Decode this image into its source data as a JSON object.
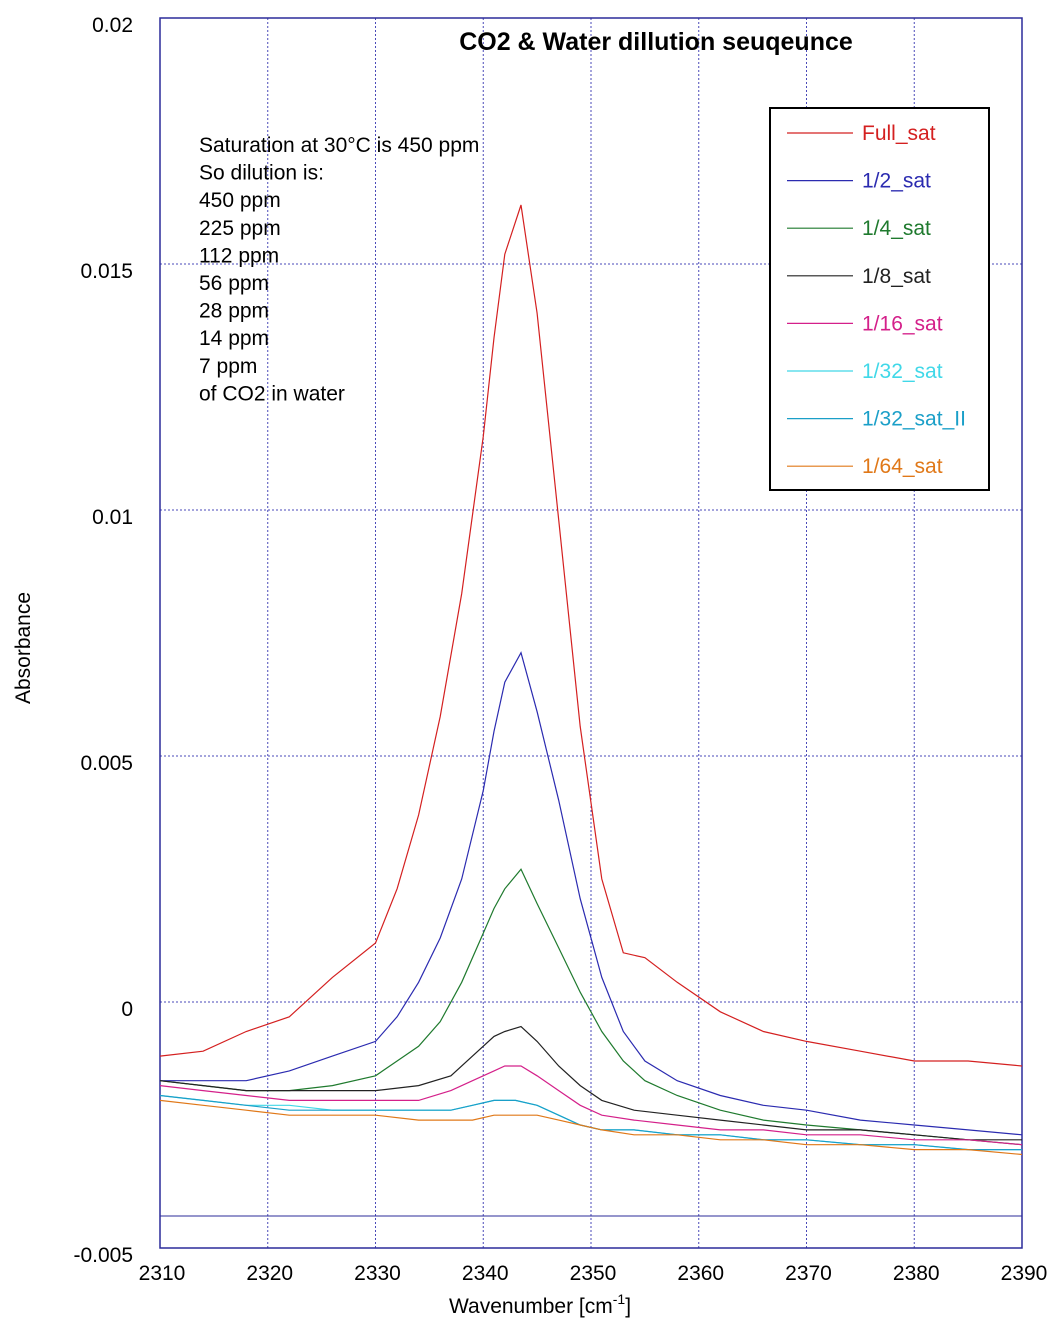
{
  "chart_data": {
    "type": "line",
    "title": "CO2 & Water dillution seuqeunce",
    "xlabel": "Wavenumber [cm",
    "xlabel_sup": "-1",
    "xlabel_end": "]",
    "ylabel": "Absorbance",
    "xlim": [
      2310,
      2390
    ],
    "ylim": [
      -0.005,
      0.02
    ],
    "x_ticks": [
      2310,
      2320,
      2330,
      2340,
      2350,
      2360,
      2370,
      2380,
      2390
    ],
    "y_ticks": [
      -0.005,
      0,
      0.005,
      0.01,
      0.015,
      0.02
    ],
    "x_tick_labels": [
      "2310",
      "2320",
      "2330",
      "2340",
      "2350",
      "2360",
      "2370",
      "2380",
      "2390"
    ],
    "y_tick_labels": [
      "-0.005",
      "0",
      "0.005",
      "0.01",
      "0.015",
      "0.02"
    ],
    "grid": true,
    "legend_position": "top-right",
    "annotation_lines": [
      "Saturation at 30°C is 450 ppm",
      "So dilution is:",
      "450 ppm",
      "225 ppm",
      "112 ppm",
      "56 ppm",
      "28 ppm",
      "14 ppm",
      "7 ppm",
      "of CO2 in water"
    ],
    "series": [
      {
        "name": "Full_sat",
        "color": "#d42020",
        "x": [
          2310,
          2314,
          2318,
          2322,
          2326,
          2330,
          2332,
          2334,
          2336,
          2338,
          2340,
          2341,
          2342,
          2343.5,
          2345,
          2347,
          2349,
          2351,
          2353,
          2355,
          2358,
          2362,
          2366,
          2370,
          2375,
          2380,
          2385,
          2390
        ],
        "y": [
          -0.0011,
          -0.001,
          -0.0006,
          -0.0003,
          0.0005,
          0.0012,
          0.0023,
          0.0038,
          0.0058,
          0.0083,
          0.0115,
          0.0135,
          0.0152,
          0.0162,
          0.014,
          0.0098,
          0.0056,
          0.0025,
          0.001,
          0.0009,
          0.0004,
          -0.0002,
          -0.0006,
          -0.0008,
          -0.001,
          -0.0012,
          -0.0012,
          -0.0013
        ]
      },
      {
        "name": "1/2_sat",
        "color": "#2b2bb0",
        "x": [
          2310,
          2314,
          2318,
          2322,
          2326,
          2330,
          2332,
          2334,
          2336,
          2338,
          2340,
          2341,
          2342,
          2343.5,
          2345,
          2347,
          2349,
          2351,
          2353,
          2355,
          2358,
          2362,
          2366,
          2370,
          2375,
          2380,
          2385,
          2390
        ],
        "y": [
          -0.0016,
          -0.0016,
          -0.0016,
          -0.0014,
          -0.0011,
          -0.0008,
          -0.0003,
          0.0004,
          0.0013,
          0.0025,
          0.0043,
          0.0055,
          0.0065,
          0.0071,
          0.0059,
          0.0041,
          0.0021,
          0.0005,
          -0.0006,
          -0.0012,
          -0.0016,
          -0.0019,
          -0.0021,
          -0.0022,
          -0.0024,
          -0.0025,
          -0.0026,
          -0.0027
        ]
      },
      {
        "name": "1/4_sat",
        "color": "#1f7a2e",
        "x": [
          2310,
          2314,
          2318,
          2322,
          2326,
          2330,
          2332,
          2334,
          2336,
          2338,
          2340,
          2341,
          2342,
          2343.5,
          2345,
          2347,
          2349,
          2351,
          2353,
          2355,
          2358,
          2362,
          2366,
          2370,
          2375,
          2380,
          2385,
          2390
        ],
        "y": [
          -0.0016,
          -0.0017,
          -0.0018,
          -0.0018,
          -0.0017,
          -0.0015,
          -0.0012,
          -0.0009,
          -0.0004,
          0.0004,
          0.0014,
          0.0019,
          0.0023,
          0.0027,
          0.002,
          0.0011,
          0.0002,
          -0.0006,
          -0.0012,
          -0.0016,
          -0.0019,
          -0.0022,
          -0.0024,
          -0.0025,
          -0.0026,
          -0.0027,
          -0.0028,
          -0.0029
        ]
      },
      {
        "name": "1/8_sat",
        "color": "#222222",
        "x": [
          2310,
          2314,
          2318,
          2322,
          2326,
          2330,
          2334,
          2337,
          2339,
          2341,
          2342,
          2343.5,
          2345,
          2347,
          2349,
          2351,
          2354,
          2358,
          2362,
          2366,
          2370,
          2375,
          2380,
          2385,
          2390
        ],
        "y": [
          -0.0016,
          -0.0017,
          -0.0018,
          -0.0018,
          -0.0018,
          -0.0018,
          -0.0017,
          -0.0015,
          -0.0011,
          -0.0007,
          -0.0006,
          -0.0005,
          -0.0008,
          -0.0013,
          -0.0017,
          -0.002,
          -0.0022,
          -0.0023,
          -0.0024,
          -0.0025,
          -0.0026,
          -0.0026,
          -0.0027,
          -0.0028,
          -0.0028
        ]
      },
      {
        "name": "1/16_sat",
        "color": "#d4208a",
        "x": [
          2310,
          2314,
          2318,
          2322,
          2326,
          2330,
          2334,
          2337,
          2339,
          2341,
          2342,
          2343.5,
          2345,
          2347,
          2349,
          2351,
          2354,
          2358,
          2362,
          2366,
          2370,
          2375,
          2380,
          2385,
          2390
        ],
        "y": [
          -0.0017,
          -0.0018,
          -0.0019,
          -0.002,
          -0.002,
          -0.002,
          -0.002,
          -0.0018,
          -0.0016,
          -0.0014,
          -0.0013,
          -0.0013,
          -0.0015,
          -0.0018,
          -0.0021,
          -0.0023,
          -0.0024,
          -0.0025,
          -0.0026,
          -0.0026,
          -0.0027,
          -0.0027,
          -0.0028,
          -0.0028,
          -0.0029
        ]
      },
      {
        "name": "1/32_sat",
        "color": "#40d8e8",
        "x": [
          2310,
          2314,
          2318,
          2322,
          2326,
          2330,
          2334,
          2337,
          2339,
          2341,
          2343,
          2345,
          2347,
          2349,
          2351,
          2354,
          2358,
          2362,
          2366,
          2370,
          2375,
          2380,
          2385,
          2390
        ],
        "y": [
          -0.0019,
          -0.002,
          -0.0021,
          -0.0021,
          -0.0022,
          -0.0022,
          -0.0022,
          -0.0022,
          -0.0021,
          -0.002,
          -0.002,
          -0.0021,
          -0.0023,
          -0.0025,
          -0.0026,
          -0.0026,
          -0.0027,
          -0.0027,
          -0.0028,
          -0.0028,
          -0.0029,
          -0.0029,
          -0.003,
          -0.003
        ]
      },
      {
        "name": "1/32_sat_II",
        "color": "#1a9fc8",
        "x": [
          2310,
          2314,
          2318,
          2322,
          2326,
          2330,
          2334,
          2337,
          2339,
          2341,
          2343,
          2345,
          2347,
          2349,
          2351,
          2354,
          2358,
          2362,
          2366,
          2370,
          2375,
          2380,
          2385,
          2390
        ],
        "y": [
          -0.0019,
          -0.002,
          -0.0021,
          -0.0022,
          -0.0022,
          -0.0022,
          -0.0022,
          -0.0022,
          -0.0021,
          -0.002,
          -0.002,
          -0.0021,
          -0.0023,
          -0.0025,
          -0.0026,
          -0.0026,
          -0.0027,
          -0.0027,
          -0.0028,
          -0.0028,
          -0.0029,
          -0.0029,
          -0.003,
          -0.003
        ]
      },
      {
        "name": "1/64_sat",
        "color": "#e07818",
        "x": [
          2310,
          2314,
          2318,
          2322,
          2326,
          2330,
          2334,
          2337,
          2339,
          2341,
          2343,
          2345,
          2347,
          2349,
          2351,
          2354,
          2358,
          2362,
          2366,
          2370,
          2375,
          2380,
          2385,
          2390
        ],
        "y": [
          -0.002,
          -0.0021,
          -0.0022,
          -0.0023,
          -0.0023,
          -0.0023,
          -0.0024,
          -0.0024,
          -0.0024,
          -0.0023,
          -0.0023,
          -0.0023,
          -0.0024,
          -0.0025,
          -0.0026,
          -0.0027,
          -0.0027,
          -0.0028,
          -0.0028,
          -0.0029,
          -0.0029,
          -0.003,
          -0.003,
          -0.0031
        ]
      }
    ]
  }
}
